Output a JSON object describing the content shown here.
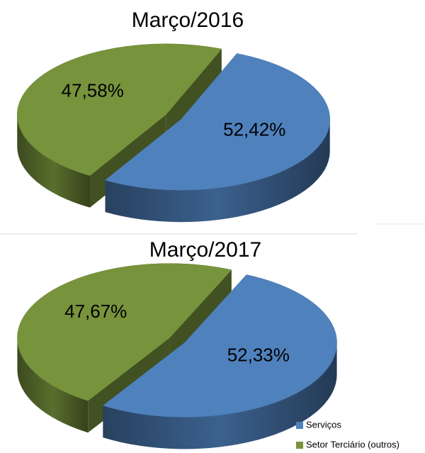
{
  "chart_data": [
    {
      "type": "pie",
      "title": "Março/2016",
      "values": [
        52.42,
        47.58
      ],
      "value_labels": [
        "52,42%",
        "47,58%"
      ],
      "colors": [
        "#4f81bd",
        "#77933c"
      ]
    },
    {
      "type": "pie",
      "title": "Março/2017",
      "categories": [
        "Serviços",
        "Setor Terciário (outros)"
      ],
      "values": [
        52.33,
        47.67
      ],
      "value_labels": [
        "52,33%",
        "47,67%"
      ],
      "colors": [
        "#4f81bd",
        "#77933c"
      ],
      "legend": "bottom-right"
    }
  ]
}
